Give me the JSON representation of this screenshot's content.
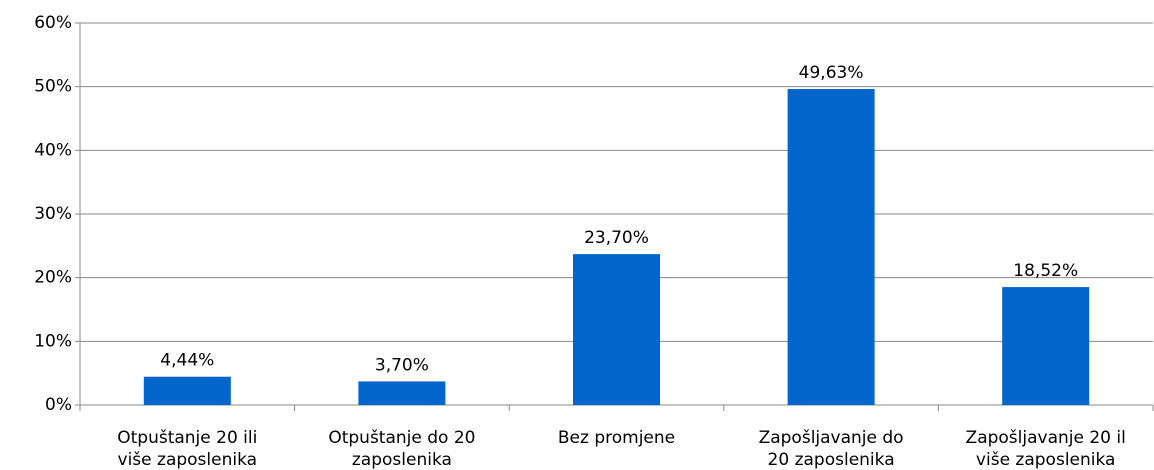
{
  "chart_data": {
    "type": "bar",
    "categories": [
      "Otpuštanje 20 ili\nviše zaposlenika",
      "Otpuštanje do 20\nzaposlenika",
      "Bez promjene",
      "Zapošljavanje do\n20 zaposlenika",
      "Zapošljavanje 20 il\nviše zaposlenika"
    ],
    "values": [
      4.44,
      3.7,
      23.7,
      49.63,
      18.52
    ],
    "value_labels": [
      "4,44%",
      "3,70%",
      "23,70%",
      "49,63%",
      "18,52%"
    ],
    "color": "#0066cc",
    "ylim": [
      0,
      60
    ],
    "yticks": [
      {
        "value": 0,
        "label": "0%"
      },
      {
        "value": 10,
        "label": "10%"
      },
      {
        "value": 20,
        "label": "20%"
      },
      {
        "value": 30,
        "label": "30%"
      },
      {
        "value": 40,
        "label": "40%"
      },
      {
        "value": 50,
        "label": "50%"
      },
      {
        "value": 60,
        "label": "60%"
      }
    ],
    "grid": true
  }
}
